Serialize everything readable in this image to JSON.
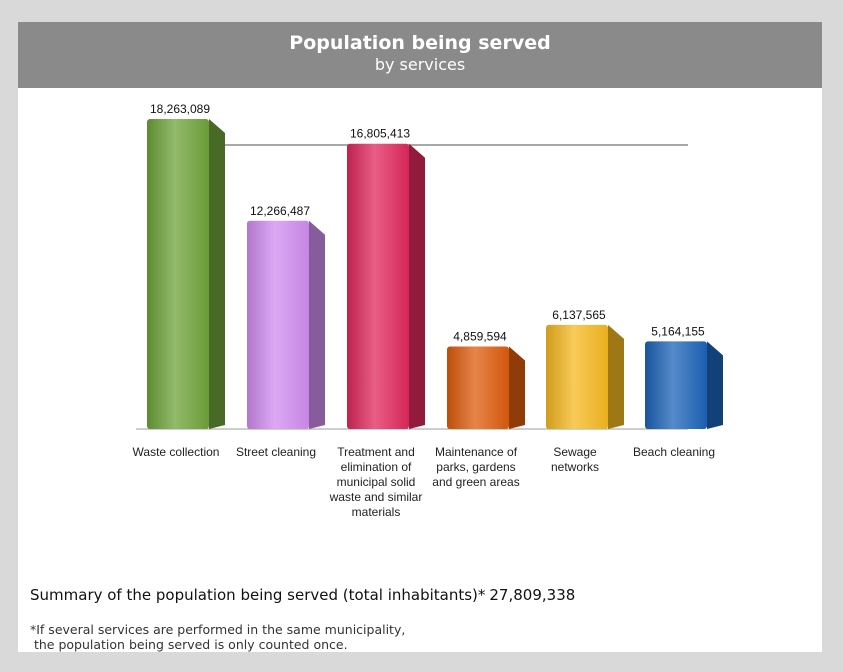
{
  "header": {
    "title": "Population being served",
    "subtitle": "by services"
  },
  "chart_data": {
    "type": "bar",
    "categories": [
      [
        "Waste collection"
      ],
      [
        "Street cleaning"
      ],
      [
        "Treatment and",
        "elimination of",
        "municipal solid",
        "waste and similar",
        "materials"
      ],
      [
        "Maintenance of",
        "parks, gardens",
        "and green areas"
      ],
      [
        "Sewage",
        "networks"
      ],
      [
        "Beach cleaning"
      ]
    ],
    "values": [
      18263089,
      12266487,
      16805413,
      4859594,
      6137565,
      5164155
    ],
    "value_labels": [
      "18,263,089",
      "12,266,487",
      "16,805,413",
      "4,859,594",
      "6,137,565",
      "5,164,155"
    ],
    "colors": [
      "#6fa33a",
      "#d08cf0",
      "#e0285c",
      "#dd5c0c",
      "#f5b820",
      "#1c63b8"
    ],
    "grid": false,
    "legend": "none"
  },
  "summary": {
    "label": "Summary of the population being served (total inhabitants)*",
    "value": "27,809,338"
  },
  "footnote": {
    "line1": "*If several services are performed in the same municipality,",
    "line2": " the population being served is only counted once."
  }
}
